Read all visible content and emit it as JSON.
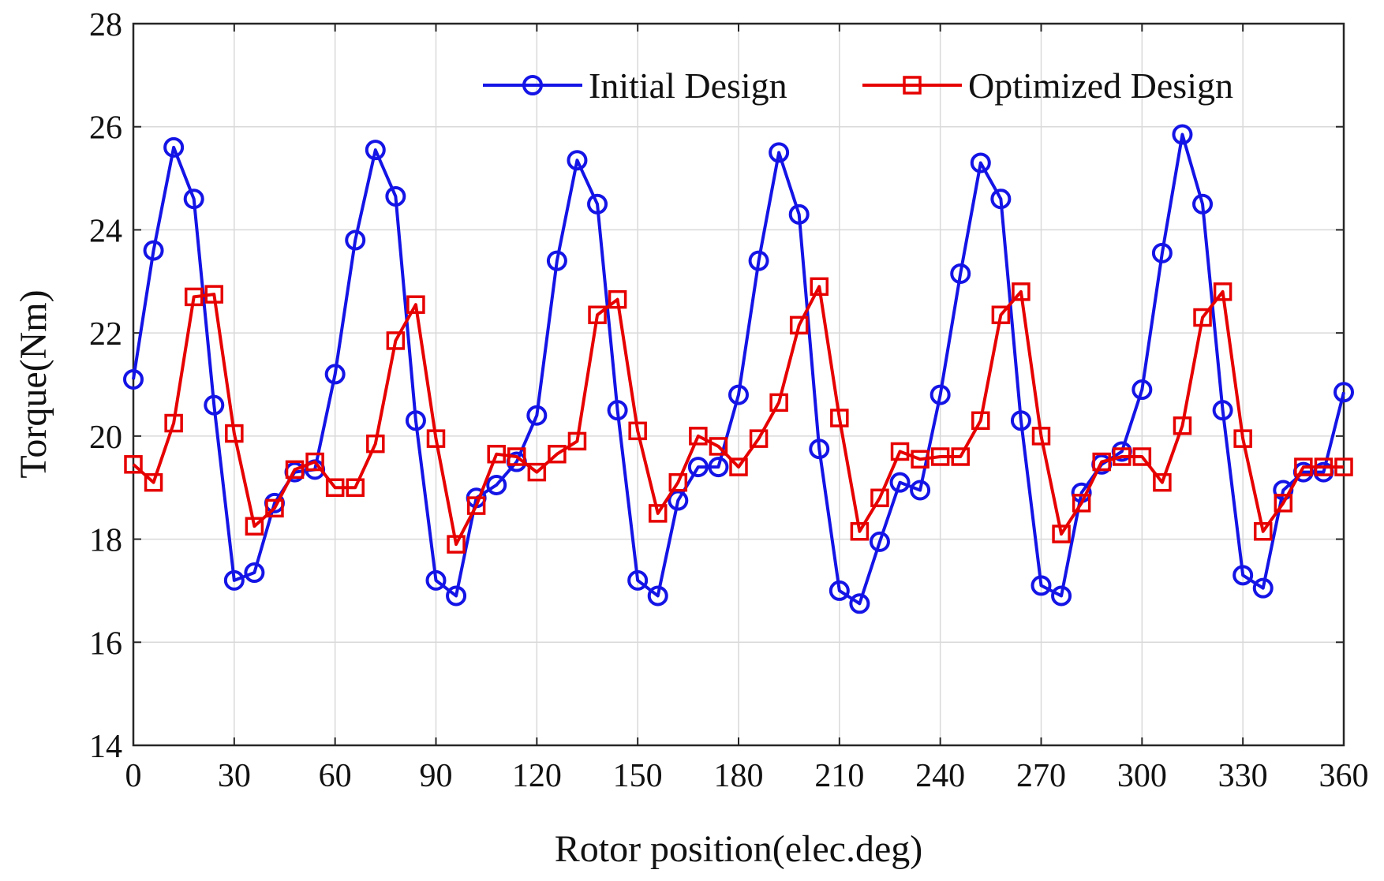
{
  "chart_data": {
    "type": "line",
    "title": "",
    "xlabel": "Rotor position(elec.deg)",
    "ylabel": "Torque(Nm)",
    "xlim": [
      0,
      360
    ],
    "ylim": [
      14,
      28
    ],
    "xticks": [
      0,
      30,
      60,
      90,
      120,
      150,
      180,
      210,
      240,
      270,
      300,
      330,
      360
    ],
    "yticks": [
      14,
      16,
      18,
      20,
      22,
      24,
      26,
      28
    ],
    "grid": true,
    "legend_position": "top-right",
    "x": [
      0,
      6,
      12,
      18,
      24,
      30,
      36,
      42,
      48,
      54,
      60,
      66,
      72,
      78,
      84,
      90,
      96,
      102,
      108,
      114,
      120,
      126,
      132,
      138,
      144,
      150,
      156,
      162,
      168,
      174,
      180,
      186,
      192,
      198,
      204,
      210,
      216,
      222,
      228,
      234,
      240,
      246,
      252,
      258,
      264,
      270,
      276,
      282,
      288,
      294,
      300,
      306,
      312,
      318,
      324,
      330,
      336,
      342,
      348,
      354,
      360
    ],
    "series": [
      {
        "name": "Initial Design",
        "color": "#1414e6",
        "marker": "circle",
        "values": [
          21.1,
          23.6,
          25.6,
          24.6,
          20.6,
          17.2,
          17.35,
          18.7,
          19.3,
          19.35,
          21.2,
          23.8,
          25.55,
          24.65,
          20.3,
          17.2,
          16.9,
          18.8,
          19.05,
          19.5,
          20.4,
          23.4,
          25.35,
          24.5,
          20.5,
          17.2,
          16.9,
          18.75,
          19.4,
          19.4,
          20.8,
          23.4,
          25.5,
          24.3,
          19.75,
          17.0,
          16.75,
          17.95,
          19.1,
          18.95,
          20.8,
          23.15,
          25.3,
          24.6,
          20.3,
          17.1,
          16.9,
          18.9,
          19.45,
          19.7,
          20.9,
          23.55,
          25.85,
          24.5,
          20.5,
          17.3,
          17.05,
          18.95,
          19.3,
          19.3,
          20.85
        ]
      },
      {
        "name": "Optimized Design",
        "color": "#e60000",
        "marker": "square",
        "values": [
          19.45,
          19.1,
          20.25,
          22.7,
          22.75,
          20.05,
          18.25,
          18.6,
          19.35,
          19.5,
          19.0,
          19.0,
          19.85,
          21.85,
          22.55,
          19.95,
          17.9,
          18.65,
          19.65,
          19.6,
          19.3,
          19.65,
          19.9,
          22.35,
          22.65,
          20.1,
          18.5,
          19.1,
          20.0,
          19.8,
          19.4,
          19.95,
          20.65,
          22.15,
          22.9,
          20.35,
          18.15,
          18.8,
          19.7,
          19.55,
          19.6,
          19.6,
          20.3,
          22.35,
          22.8,
          20.0,
          18.1,
          18.7,
          19.5,
          19.6,
          19.6,
          19.1,
          20.2,
          22.3,
          22.8,
          19.95,
          18.15,
          18.7,
          19.4,
          19.4,
          19.4
        ]
      }
    ]
  }
}
